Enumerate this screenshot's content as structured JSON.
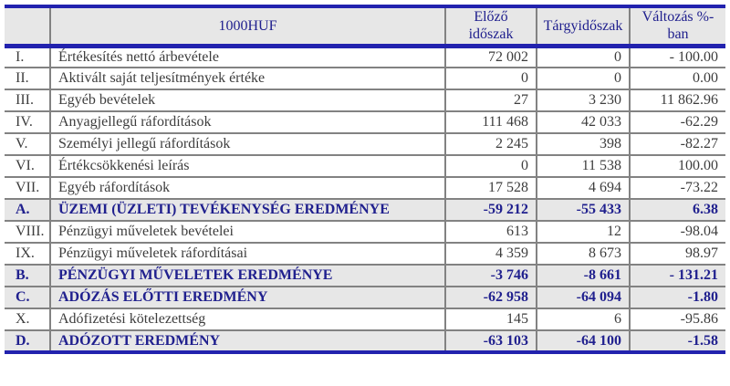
{
  "colors": {
    "accent_blue": "#2222ae",
    "navy_text": "#20208e",
    "grid_gray": "#828282",
    "band_gray": "#e7e7e7",
    "body_text": "#3d3d3d"
  },
  "table": {
    "unit_header": "1000HUF",
    "columns": [
      "Előző időszak",
      "Tárgyidőszak",
      "Változás %-ban"
    ],
    "rows": [
      {
        "num": "I.",
        "label": "Értékesítés nettó árbevétele",
        "prev": "72 002",
        "curr": "0",
        "change": "- 100.00",
        "bold": false
      },
      {
        "num": "II.",
        "label": "Aktivált saját teljesítmények értéke",
        "prev": "0",
        "curr": "0",
        "change": "0.00",
        "bold": false
      },
      {
        "num": "III.",
        "label": "Egyéb bevételek",
        "prev": "27",
        "curr": "3 230",
        "change": "11 862.96",
        "bold": false
      },
      {
        "num": "IV.",
        "label": "Anyagjellegű ráfordítások",
        "prev": "111 468",
        "curr": "42 033",
        "change": "-62.29",
        "bold": false
      },
      {
        "num": "V.",
        "label": "Személyi jellegű ráfordítások",
        "prev": "2 245",
        "curr": "398",
        "change": "-82.27",
        "bold": false
      },
      {
        "num": "VI.",
        "label": "Értékcsökkenési leírás",
        "prev": "0",
        "curr": "11 538",
        "change": "100.00",
        "bold": false
      },
      {
        "num": "VII.",
        "label": "Egyéb ráfordítások",
        "prev": "17 528",
        "curr": "4 694",
        "change": "-73.22",
        "bold": false
      },
      {
        "num": "A.",
        "label": "ÜZEMI (ÜZLETI) TEVÉKENYSÉG EREDMÉNYE",
        "prev": "-59 212",
        "curr": "-55 433",
        "change": "6.38",
        "bold": true
      },
      {
        "num": "VIII.",
        "label": "Pénzügyi műveletek bevételei",
        "prev": "613",
        "curr": "12",
        "change": "-98.04",
        "bold": false
      },
      {
        "num": "IX.",
        "label": "Pénzügyi műveletek ráfordításai",
        "prev": "4 359",
        "curr": "8 673",
        "change": "98.97",
        "bold": false
      },
      {
        "num": "B.",
        "label": "PÉNZÜGYI MŰVELETEK EREDMÉNYE",
        "prev": "-3 746",
        "curr": "-8 661",
        "change": "- 131.21",
        "bold": true
      },
      {
        "num": "C.",
        "label": "ADÓZÁS ELŐTTI EREDMÉNY",
        "prev": "-62 958",
        "curr": "-64 094",
        "change": "-1.80",
        "bold": true
      },
      {
        "num": "X.",
        "label": "Adófizetési kötelezettség",
        "prev": "145",
        "curr": "6",
        "change": "-95.86",
        "bold": false
      },
      {
        "num": "D.",
        "label": "ADÓZOTT EREDMÉNY",
        "prev": "-63 103",
        "curr": "-64 100",
        "change": "-1.58",
        "bold": true
      }
    ]
  }
}
